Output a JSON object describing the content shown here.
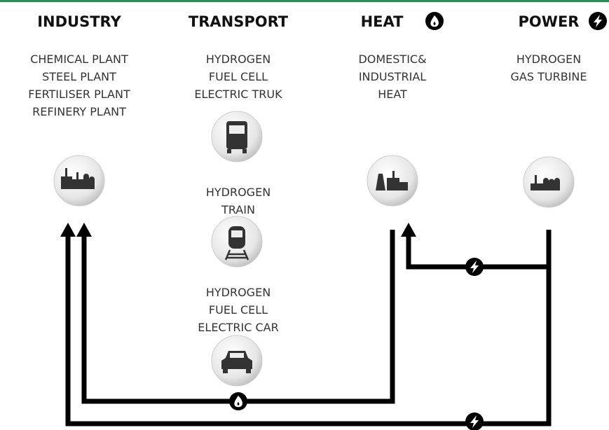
{
  "columns": [
    {
      "title": "INDUSTRY",
      "lines": [
        "CHEMICAL PLANT",
        "STEEL PLANT",
        "FERTILISER PLANT",
        "REFINERY PLANT"
      ]
    },
    {
      "title": "TRANSPORT",
      "groups": [
        {
          "lines": [
            "HYDROGEN",
            "FUEL CELL",
            "ELECTRIC TRUK"
          ]
        },
        {
          "lines": [
            "HYDROGEN",
            "TRAIN"
          ]
        },
        {
          "lines": [
            "HYDROGEN",
            "FUEL CELL",
            "ELECTRIC CAR"
          ]
        }
      ]
    },
    {
      "title": "HEAT",
      "lines": [
        "DOMESTIC&",
        "INDUSTRIAL",
        "HEAT"
      ]
    },
    {
      "title": "POWER",
      "lines": [
        "HYDROGEN",
        "GAS TURBINE"
      ]
    }
  ]
}
